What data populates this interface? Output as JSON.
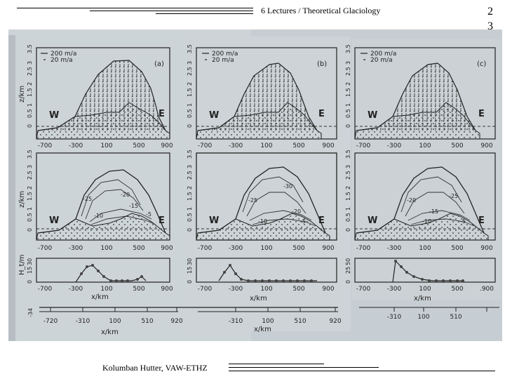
{
  "header": {
    "title": "6 Lectures / Theoretical Glaciology"
  },
  "slide_number": [
    "2",
    "3"
  ],
  "footer": {
    "author": "Kolumban Hutter, VAW-ETHZ"
  },
  "figure": {
    "panel_labels": [
      "(a)",
      "(b)",
      "(c)"
    ],
    "legend": [
      "200 m/a",
      "20 m/a"
    ],
    "directions": {
      "west": "W",
      "east": "E"
    },
    "top_row": {
      "ylabel": "z/km",
      "yticks": [
        "0",
        "0.5",
        "1",
        "1.5",
        "2",
        "2.5",
        "3",
        "3.5"
      ],
      "xticks": [
        "-700",
        "-300",
        "100",
        "500",
        "900"
      ]
    },
    "middle_row": {
      "ylabel": "z/km",
      "yticks": [
        "0",
        "0.5",
        "1",
        "1.5",
        "2",
        "2.5",
        "3",
        "3.5"
      ],
      "xticks": [
        "-700",
        "-300",
        "100",
        "500",
        "900"
      ],
      "contours": {
        "a": [
          "-25",
          "-20",
          "-15",
          "-10",
          "-5"
        ],
        "b": [
          "-30",
          "-25",
          "-20",
          "-10",
          "-5"
        ],
        "c": [
          "-25",
          "-20",
          "-15",
          "-10",
          "-5"
        ]
      }
    },
    "bottom_row": {
      "ylabel": "H_t/m",
      "yticks": {
        "a": [
          "0",
          "15",
          "30"
        ],
        "b": [
          "0",
          "15",
          "30"
        ],
        "c": [
          "0",
          "25",
          "50"
        ]
      },
      "xticks": [
        "-700",
        "-300",
        "100",
        "500",
        "900"
      ],
      "xticks_c": [
        "-700",
        "-300",
        "100",
        "500",
        ".900"
      ],
      "xlabel": "x/km"
    },
    "base_axis": {
      "value_left": "-34",
      "ticks": [
        "-720",
        "-310",
        "100",
        "510",
        "920"
      ],
      "xlabel": "x/km"
    }
  }
}
